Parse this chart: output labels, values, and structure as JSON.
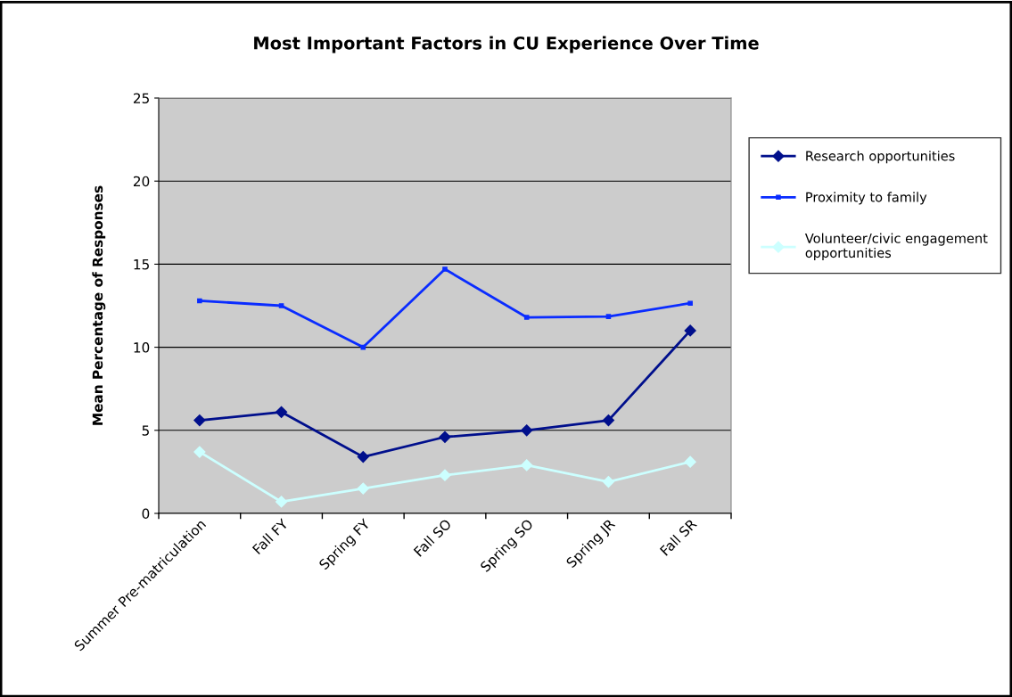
{
  "chart_data": {
    "type": "line",
    "title": "Most Important Factors in CU Experience Over Time",
    "ylabel": "Mean Percentage of Responses",
    "categories": [
      "Summer Pre-matriculation",
      "Fall FY",
      "Spring FY",
      "Fall SO",
      "Spring SO",
      "Spring JR",
      "Fall SR"
    ],
    "series": [
      {
        "name": "Research opportunities",
        "color": "#000f8c",
        "marker": "diamond",
        "values": [
          5.6,
          6.1,
          3.4,
          4.6,
          5.0,
          5.6,
          11.0
        ]
      },
      {
        "name": "Proximity to family",
        "color": "#0a2cff",
        "marker": "square",
        "values": [
          12.8,
          12.5,
          10.0,
          14.7,
          11.8,
          11.85,
          12.65
        ]
      },
      {
        "name": "Volunteer/civic engagement opportunities",
        "color": "#ccffff",
        "marker": "diamond",
        "values": [
          3.7,
          0.7,
          1.5,
          2.3,
          2.9,
          1.9,
          3.1
        ]
      }
    ],
    "ylim": [
      0,
      25
    ],
    "yticks": [
      0,
      5,
      10,
      15,
      20,
      25
    ],
    "grid": "y",
    "legend": "right",
    "line_style": "solid"
  }
}
